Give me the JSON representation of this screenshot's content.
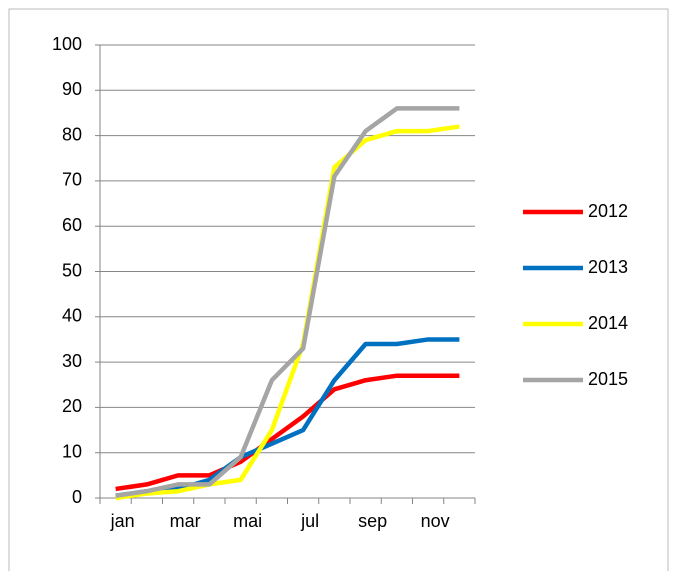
{
  "chart_data": {
    "type": "line",
    "categories": [
      "jan",
      null,
      "mar",
      null,
      "mai",
      null,
      "jul",
      null,
      "sep",
      null,
      "nov",
      null
    ],
    "series": [
      {
        "name": "2012",
        "color": "#ff0000",
        "values": [
          2,
          3,
          5,
          5,
          8,
          13,
          18,
          24,
          26,
          27,
          27,
          27
        ]
      },
      {
        "name": "2013",
        "color": "#0070c0",
        "values": [
          0.5,
          1.5,
          2,
          4,
          9,
          12,
          15,
          26,
          34,
          34,
          35,
          35
        ]
      },
      {
        "name": "2014",
        "color": "#ffff00",
        "values": [
          0,
          1,
          1.5,
          3,
          4,
          15,
          34,
          73,
          79,
          81,
          81,
          82
        ]
      },
      {
        "name": "2015",
        "color": "#a5a5a5",
        "values": [
          0.5,
          1.5,
          3,
          3,
          9,
          26,
          33,
          71,
          81,
          86,
          86,
          86
        ]
      }
    ],
    "ylim": [
      0,
      100
    ],
    "yticks": [
      0,
      10,
      20,
      30,
      40,
      50,
      60,
      70,
      80,
      90,
      100
    ],
    "grid": true,
    "legend": "right"
  }
}
